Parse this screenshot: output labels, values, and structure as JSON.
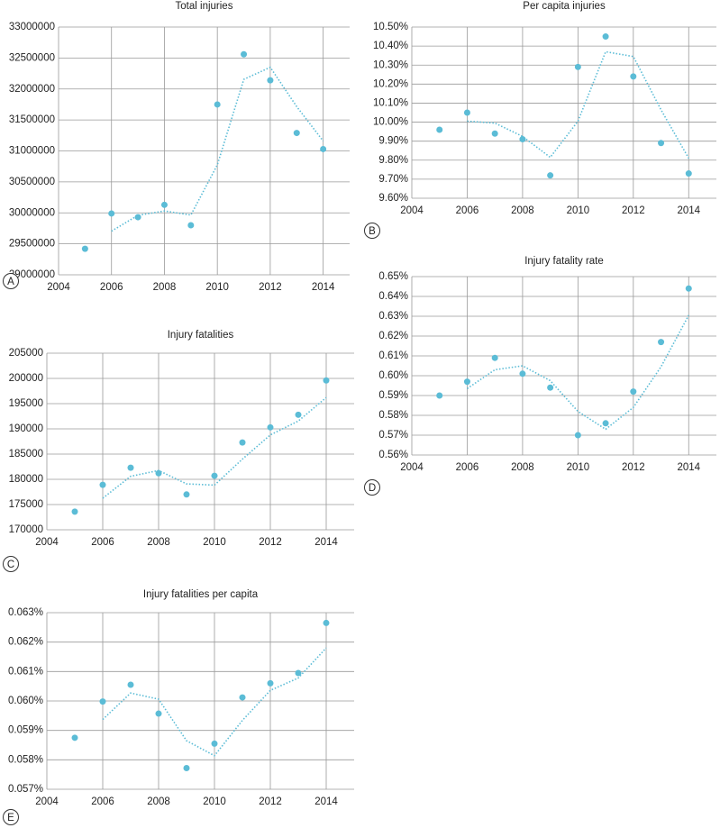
{
  "chart_data": [
    {
      "type": "scatter",
      "title": "Total injuries",
      "label": "A",
      "color": "#5bbcd6",
      "grid": true,
      "x": [
        2005,
        2006,
        2007,
        2008,
        2009,
        2010,
        2011,
        2012,
        2013,
        2014
      ],
      "values": [
        29420000,
        29990000,
        29930000,
        30130000,
        29800000,
        31750000,
        32560000,
        32140000,
        31290000,
        31030000
      ],
      "trend": [
        null,
        29705000,
        29960000,
        30030000,
        29965000,
        30775000,
        32155000,
        32350000,
        31715000,
        31160000
      ],
      "xlim": [
        2004,
        2015
      ],
      "xticks": [
        2004,
        2006,
        2008,
        2010,
        2012,
        2014
      ],
      "ylim": [
        29000000,
        33000000
      ],
      "yticks": [
        29000000,
        29500000,
        30000000,
        30500000,
        31000000,
        31500000,
        32000000,
        32500000,
        33000000
      ]
    },
    {
      "type": "scatter",
      "title": "Per capita injuries",
      "label": "B",
      "color": "#5bbcd6",
      "grid": true,
      "x": [
        2005,
        2006,
        2007,
        2008,
        2009,
        2010,
        2011,
        2012,
        2013,
        2014
      ],
      "values": [
        9.96,
        10.05,
        9.94,
        9.91,
        9.72,
        10.29,
        10.45,
        10.24,
        9.89,
        9.73
      ],
      "trend": [
        null,
        10.005,
        9.995,
        9.925,
        9.815,
        10.005,
        10.37,
        10.345,
        10.065,
        9.81
      ],
      "xlim": [
        2004,
        2015
      ],
      "xticks": [
        2004,
        2006,
        2008,
        2010,
        2012,
        2014
      ],
      "ylim": [
        9.6,
        10.5
      ],
      "yticks": [
        {
          "value": 9.6,
          "label": "9.60%"
        },
        {
          "value": 9.7,
          "label": "9.70%"
        },
        {
          "value": 9.8,
          "label": "9.80%"
        },
        {
          "value": 9.9,
          "label": "9.90%"
        },
        {
          "value": 10.0,
          "label": "10.00%"
        },
        {
          "value": 10.1,
          "label": "10.10%"
        },
        {
          "value": 10.2,
          "label": "10.20%"
        },
        {
          "value": 10.3,
          "label": "10.30%"
        },
        {
          "value": 10.4,
          "label": "10.40%"
        },
        {
          "value": 10.5,
          "label": "10.50%"
        }
      ]
    },
    {
      "type": "scatter",
      "title": "Injury fatalities",
      "label": "C",
      "color": "#5bbcd6",
      "grid": true,
      "x": [
        2005,
        2006,
        2007,
        2008,
        2009,
        2010,
        2011,
        2012,
        2013,
        2014
      ],
      "values": [
        173600,
        178900,
        182300,
        181200,
        177000,
        180700,
        187300,
        190300,
        192800,
        199600
      ],
      "trend": [
        null,
        176250,
        180600,
        181750,
        179100,
        178850,
        184000,
        188800,
        191550,
        196200
      ],
      "xlim": [
        2004,
        2015
      ],
      "xticks": [
        2004,
        2006,
        2008,
        2010,
        2012,
        2014
      ],
      "ylim": [
        170000,
        205000
      ],
      "yticks": [
        170000,
        175000,
        180000,
        185000,
        190000,
        195000,
        200000,
        205000
      ]
    },
    {
      "type": "scatter",
      "title": "Injury fatality rate",
      "label": "D",
      "color": "#5bbcd6",
      "grid": true,
      "x": [
        2005,
        2006,
        2007,
        2008,
        2009,
        2010,
        2011,
        2012,
        2013,
        2014
      ],
      "values": [
        0.59,
        0.597,
        0.609,
        0.601,
        0.594,
        0.57,
        0.576,
        0.592,
        0.617,
        0.644
      ],
      "trend": [
        null,
        0.5935,
        0.603,
        0.605,
        0.5975,
        0.582,
        0.573,
        0.584,
        0.6045,
        0.6305
      ],
      "xlim": [
        2004,
        2015
      ],
      "xticks": [
        2004,
        2006,
        2008,
        2010,
        2012,
        2014
      ],
      "ylim": [
        0.56,
        0.65
      ],
      "yticks": [
        {
          "value": 0.56,
          "label": "0.56%"
        },
        {
          "value": 0.57,
          "label": "0.57%"
        },
        {
          "value": 0.58,
          "label": "0.58%"
        },
        {
          "value": 0.59,
          "label": "0.59%"
        },
        {
          "value": 0.6,
          "label": "0.60%"
        },
        {
          "value": 0.61,
          "label": "0.61%"
        },
        {
          "value": 0.62,
          "label": "0.62%"
        },
        {
          "value": 0.63,
          "label": "0.63%"
        },
        {
          "value": 0.64,
          "label": "0.64%"
        },
        {
          "value": 0.65,
          "label": "0.65%"
        }
      ]
    },
    {
      "type": "scatter",
      "title": "Injury fatalities per capita",
      "label": "E",
      "color": "#5bbcd6",
      "grid": true,
      "x": [
        2005,
        2006,
        2007,
        2008,
        2009,
        2010,
        2011,
        2012,
        2013,
        2014
      ],
      "values": [
        0.05875,
        0.05998,
        0.06055,
        0.05957,
        0.05772,
        0.05855,
        0.06012,
        0.0606,
        0.06095,
        0.06265
      ],
      "trend": [
        null,
        0.05937,
        0.06027,
        0.06006,
        0.05865,
        0.05814,
        0.05934,
        0.06036,
        0.06078,
        0.0618
      ],
      "xlim": [
        2004,
        2015
      ],
      "xticks": [
        2004,
        2006,
        2008,
        2010,
        2012,
        2014
      ],
      "ylim": [
        0.057,
        0.063
      ],
      "yticks": [
        {
          "value": 0.057,
          "label": "0.057%"
        },
        {
          "value": 0.058,
          "label": "0.058%"
        },
        {
          "value": 0.059,
          "label": "0.059%"
        },
        {
          "value": 0.06,
          "label": "0.060%"
        },
        {
          "value": 0.061,
          "label": "0.061%"
        },
        {
          "value": 0.062,
          "label": "0.062%"
        },
        {
          "value": 0.063,
          "label": "0.063%"
        }
      ]
    }
  ]
}
